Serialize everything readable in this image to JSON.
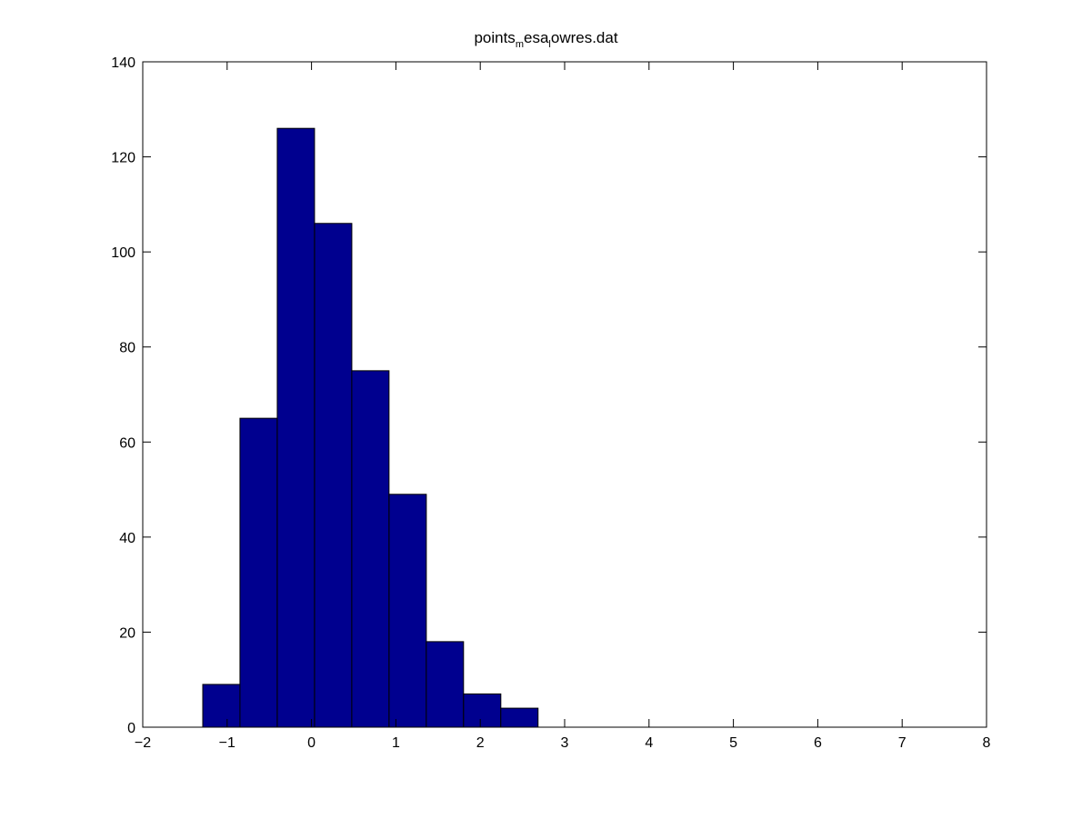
{
  "chart_data": {
    "type": "bar",
    "subtype": "histogram",
    "title_parts": [
      {
        "text": "points",
        "sub": false
      },
      {
        "text": "m",
        "sub": true
      },
      {
        "text": "esa",
        "sub": false
      },
      {
        "text": "l",
        "sub": true
      },
      {
        "text": "owres.dat",
        "sub": false
      }
    ],
    "bin_centers": [
      -1.068,
      -0.627,
      -0.185,
      0.257,
      0.698,
      1.14,
      1.581,
      2.023,
      2.464
    ],
    "bin_width": 0.4415,
    "values": [
      9,
      65,
      126,
      106,
      75,
      49,
      18,
      7,
      4
    ],
    "xlim": [
      -2,
      8
    ],
    "ylim": [
      0,
      140
    ],
    "xticks": [
      -2,
      -1,
      0,
      1,
      2,
      3,
      4,
      5,
      6,
      7,
      8
    ],
    "yticks": [
      0,
      20,
      40,
      60,
      80,
      100,
      120,
      140
    ],
    "xlabel": "",
    "ylabel": "",
    "grid": false,
    "bar_color": "#00008F",
    "edge_color": "#000000"
  }
}
